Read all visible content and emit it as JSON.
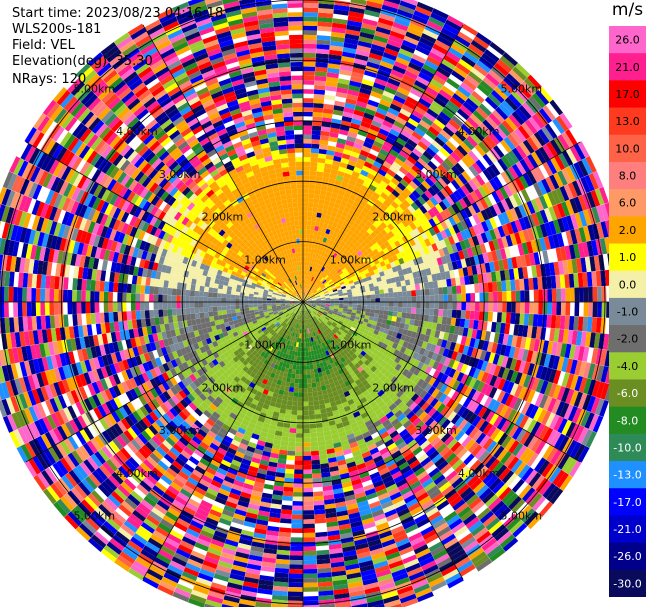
{
  "header": {
    "start_time": "Start time: 2023/08/23 04:16:18",
    "instrument": "WLS200s-181",
    "field": "Field: VEL",
    "elevation": "Elevation(deg): 35.30",
    "nrays": "NRays: 120"
  },
  "chart_data": {
    "type": "heatmap",
    "subtype": "radar-ppi",
    "field": "VEL",
    "units": "m/s",
    "n_rays": 120,
    "elevation_deg": 35.3,
    "range_rings_km": [
      1.0,
      2.0,
      3.0,
      4.0,
      5.0
    ],
    "range_labels": [
      "1.00km",
      "2.00km",
      "3.00km",
      "4.00km",
      "5.00km"
    ],
    "max_range_km": 5.3,
    "spokes_deg": [
      0,
      30,
      60,
      90,
      120,
      150,
      180,
      210,
      240,
      270,
      300,
      330
    ],
    "pattern": {
      "note": "velocity field: positive (approaching) north, negative (receding) south, noisy beyond ~2.5 km",
      "clean_range_km": 2.5,
      "north_peak_ms": 5.0,
      "south_peak_ms": -7.0
    },
    "colorbar": {
      "unit": "m/s",
      "range": [
        -30.0,
        30.0
      ],
      "tick_labels": [
        "26.0",
        "21.0",
        "17.0",
        "13.0",
        "10.0",
        "8.0",
        "6.0",
        "2.0",
        "1.0",
        "0.0",
        "-1.0",
        "-2.0",
        "-4.0",
        "-6.0",
        "-8.0",
        "-10.0",
        "-13.0",
        "-17.0",
        "-21.0",
        "-26.0",
        "-30.0"
      ],
      "bands": [
        {
          "min": 26,
          "max": 30,
          "color": "#ff66cc"
        },
        {
          "min": 21,
          "max": 26,
          "color": "#ff1f8f"
        },
        {
          "min": 17,
          "max": 21,
          "color": "#ff0000"
        },
        {
          "min": 13,
          "max": 17,
          "color": "#ff3b1f"
        },
        {
          "min": 10,
          "max": 13,
          "color": "#ff6347"
        },
        {
          "min": 8,
          "max": 10,
          "color": "#ff7f7f"
        },
        {
          "min": 6,
          "max": 8,
          "color": "#ff9966"
        },
        {
          "min": 2,
          "max": 6,
          "color": "#ffa500"
        },
        {
          "min": 1,
          "max": 2,
          "color": "#ffff00"
        },
        {
          "min": 0,
          "max": 1,
          "color": "#f5f0a8"
        },
        {
          "min": -1,
          "max": 0,
          "color": "#7a8a99"
        },
        {
          "min": -2,
          "max": -1,
          "color": "#6e6e6e"
        },
        {
          "min": -4,
          "max": -2,
          "color": "#9acd32"
        },
        {
          "min": -6,
          "max": -4,
          "color": "#6b8e23"
        },
        {
          "min": -8,
          "max": -6,
          "color": "#228b22"
        },
        {
          "min": -10,
          "max": -8,
          "color": "#2e8b57"
        },
        {
          "min": -13,
          "max": -10,
          "color": "#1e90ff"
        },
        {
          "min": -17,
          "max": -13,
          "color": "#0000ff"
        },
        {
          "min": -21,
          "max": -17,
          "color": "#0000cd"
        },
        {
          "min": -26,
          "max": -21,
          "color": "#00008b"
        },
        {
          "min": -30,
          "max": -26,
          "color": "#0a0a5c"
        }
      ]
    }
  }
}
